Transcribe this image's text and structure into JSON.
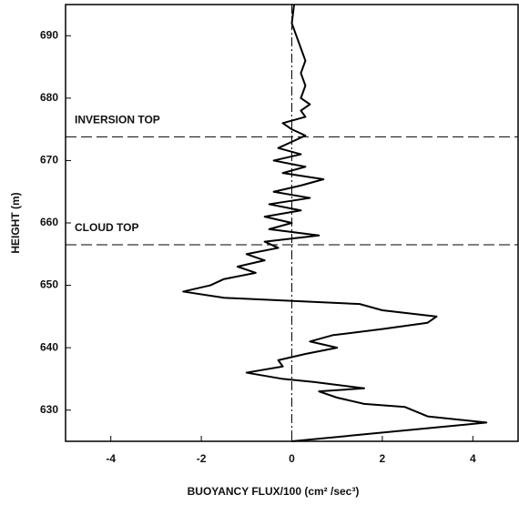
{
  "chart_data": {
    "type": "line",
    "x_label": "BUOYANCY FLUX/100 (cm² /sec³)",
    "y_label": "HEIGHT (m)",
    "xlim": [
      -5,
      5
    ],
    "ylim": [
      625,
      695
    ],
    "xticks": [
      -4,
      -2,
      0,
      2,
      4
    ],
    "yticks": [
      630,
      640,
      650,
      660,
      670,
      680,
      690
    ],
    "grid": false,
    "vline": 0,
    "hlines": [
      {
        "value": 673.8,
        "label": "INVERSION TOP"
      },
      {
        "value": 656.5,
        "label": "CLOUD TOP"
      }
    ],
    "series": [
      {
        "color": "#000000",
        "x": [
          0,
          4.3,
          3.0,
          2.5,
          1.6,
          1.0,
          0.6,
          1.6,
          0.5,
          -0.2,
          -1.0,
          -0.2,
          -0.3,
          0.3,
          1.0,
          0.4,
          0.9,
          2.0,
          3.0,
          3.2,
          2.0,
          1.5,
          -1.5,
          -2.4,
          -1.8,
          -1.5,
          -0.8,
          -1.2,
          -0.6,
          -1.0,
          -0.3,
          -0.6,
          0.6,
          -0.5,
          0.0,
          -0.6,
          0.2,
          -0.5,
          0.4,
          -0.4,
          0.2,
          0.7,
          -0.2,
          0.3,
          -0.4,
          0.2,
          -0.3,
          0.0,
          0.3,
          0.0,
          -0.2,
          0.3,
          0.2,
          0.4,
          0.2,
          0.3,
          0.2,
          0.3,
          0.2,
          0.1,
          0.0,
          0.05
        ],
        "y": [
          625,
          628,
          629,
          630.5,
          631,
          632,
          633,
          633.5,
          634.5,
          635,
          636,
          637,
          638,
          639,
          640,
          641,
          642,
          643,
          644,
          645,
          646,
          647,
          648,
          649,
          650,
          651,
          652,
          653,
          654,
          655,
          656,
          657,
          658,
          659,
          660,
          661,
          662,
          663,
          664,
          665,
          666,
          667,
          668,
          669,
          670,
          671,
          672,
          673,
          674,
          675,
          676,
          677,
          678,
          679,
          680,
          682,
          684,
          686,
          688,
          690,
          692,
          695
        ]
      }
    ]
  }
}
